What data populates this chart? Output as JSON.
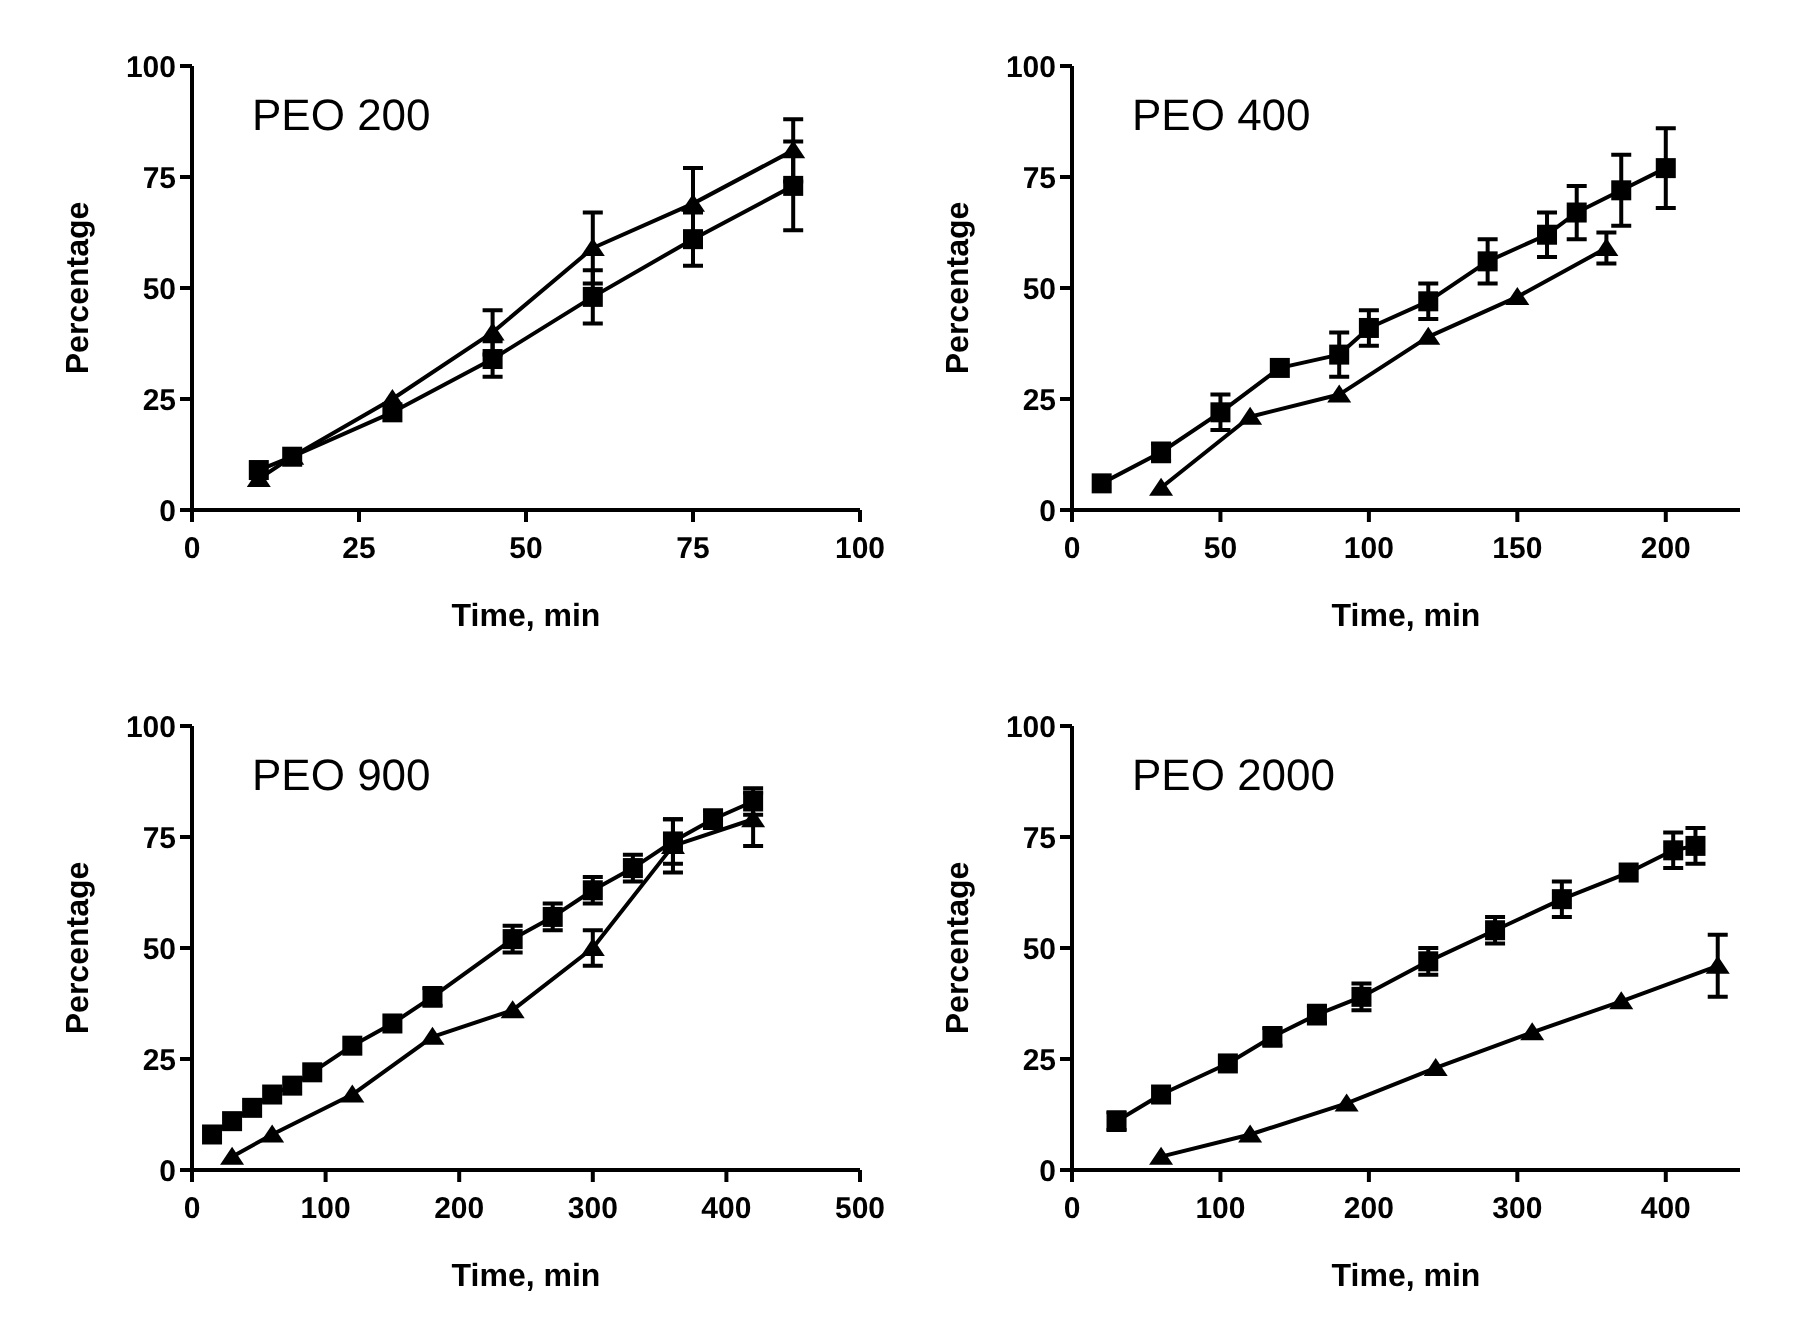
{
  "chart_data": [
    {
      "type": "line",
      "title": "PEO 200",
      "xlabel": "Time, min",
      "ylabel": "Percentage",
      "xlim": [
        0,
        100
      ],
      "xticks": [
        0,
        25,
        50,
        75,
        100
      ],
      "ylim": [
        0,
        100
      ],
      "yticks": [
        0,
        25,
        50,
        75,
        100
      ],
      "series": [
        {
          "color": "#000000",
          "marker": "square",
          "x": [
            10,
            15,
            30,
            45,
            60,
            75,
            90
          ],
          "values": [
            9,
            12,
            22,
            34,
            48,
            61,
            73
          ],
          "errors": [
            null,
            null,
            null,
            4,
            6,
            6,
            10
          ]
        },
        {
          "color": "#000000",
          "marker": "triangle",
          "x": [
            10,
            15,
            30,
            45,
            60,
            75,
            90
          ],
          "values": [
            7,
            12,
            25,
            40,
            59,
            69,
            81
          ],
          "errors": [
            null,
            null,
            null,
            5,
            8,
            8,
            7
          ]
        }
      ]
    },
    {
      "type": "line",
      "title": "PEO 400",
      "xlabel": "Time, min",
      "ylabel": "Percentage",
      "xlim": [
        0,
        225
      ],
      "xticks": [
        0,
        50,
        100,
        150,
        200
      ],
      "ylim": [
        0,
        100
      ],
      "yticks": [
        0,
        25,
        50,
        75,
        100
      ],
      "series": [
        {
          "color": "#000000",
          "marker": "square",
          "x": [
            10,
            30,
            50,
            70,
            90,
            100,
            120,
            140,
            160,
            170,
            185,
            200
          ],
          "values": [
            6,
            13,
            22,
            32,
            35,
            41,
            47,
            56,
            62,
            67,
            72,
            77
          ],
          "errors": [
            null,
            2,
            4,
            null,
            5,
            4,
            4,
            5,
            5,
            6,
            8,
            9
          ]
        },
        {
          "color": "#000000",
          "marker": "triangle",
          "x": [
            30,
            60,
            90,
            120,
            150,
            180
          ],
          "values": [
            5,
            21,
            26,
            39,
            48,
            59
          ],
          "errors": [
            null,
            null,
            null,
            null,
            null,
            3.5
          ]
        }
      ]
    },
    {
      "type": "line",
      "title": "PEO 900",
      "xlabel": "Time, min",
      "ylabel": "Percentage",
      "xlim": [
        0,
        500
      ],
      "xticks": [
        0,
        100,
        200,
        300,
        400,
        500
      ],
      "ylim": [
        0,
        100
      ],
      "yticks": [
        0,
        25,
        50,
        75,
        100
      ],
      "series": [
        {
          "color": "#000000",
          "marker": "square",
          "x": [
            15,
            30,
            45,
            60,
            75,
            90,
            120,
            150,
            180,
            240,
            270,
            300,
            330,
            360,
            390,
            420
          ],
          "values": [
            8,
            11,
            14,
            17,
            19,
            22,
            28,
            33,
            39,
            52,
            57,
            63,
            68,
            74,
            79,
            83
          ],
          "errors": [
            null,
            null,
            null,
            null,
            null,
            null,
            null,
            null,
            2,
            3,
            3,
            3,
            3,
            5,
            2,
            3
          ]
        },
        {
          "color": "#000000",
          "marker": "triangle",
          "x": [
            30,
            60,
            120,
            180,
            240,
            300,
            360,
            420
          ],
          "values": [
            3,
            8,
            17,
            30,
            36,
            50,
            73,
            79
          ],
          "errors": [
            null,
            null,
            null,
            null,
            null,
            4,
            6,
            6
          ]
        }
      ]
    },
    {
      "type": "line",
      "title": "PEO 2000",
      "xlabel": "Time, min",
      "ylabel": "Percentage",
      "xlim": [
        0,
        450
      ],
      "xticks": [
        0,
        100,
        200,
        300,
        400
      ],
      "ylim": [
        0,
        100
      ],
      "yticks": [
        0,
        25,
        50,
        75,
        100
      ],
      "series": [
        {
          "color": "#000000",
          "marker": "square",
          "x": [
            30,
            60,
            105,
            135,
            165,
            195,
            240,
            285,
            330,
            375,
            405,
            420
          ],
          "values": [
            11,
            17,
            24,
            30,
            35,
            39,
            47,
            54,
            61,
            67,
            72,
            73
          ],
          "errors": [
            2,
            null,
            null,
            2,
            2,
            3,
            3,
            3,
            4,
            null,
            4,
            4
          ]
        },
        {
          "color": "#000000",
          "marker": "triangle",
          "x": [
            60,
            120,
            185,
            245,
            310,
            370,
            435
          ],
          "values": [
            3,
            8,
            15,
            23,
            31,
            38,
            46
          ],
          "errors": [
            null,
            null,
            null,
            null,
            null,
            null,
            7
          ]
        }
      ]
    }
  ]
}
